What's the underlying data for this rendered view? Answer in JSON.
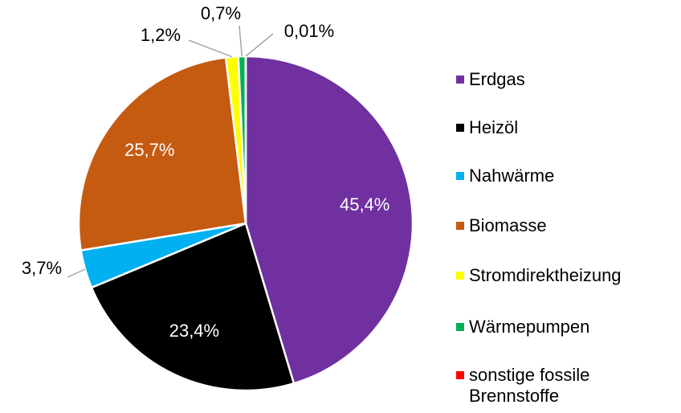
{
  "chart_data": {
    "type": "pie",
    "categories": [
      "Erdgas",
      "Heizöl",
      "Nahwärme",
      "Biomasse",
      "Stromdirektheizung",
      "Wärmepumpen",
      "sonstige fossile Brennstoffe"
    ],
    "values": [
      45.4,
      23.4,
      3.7,
      25.7,
      1.2,
      0.7,
      0.01
    ],
    "value_labels": [
      "45,4%",
      "23,4%",
      "3,7%",
      "25,7%",
      "1,2%",
      "0,7%",
      "0,01%"
    ],
    "colors": [
      "#7030a0",
      "#000000",
      "#00b0f0",
      "#c55a11",
      "#ffff00",
      "#00b050",
      "#ff0000"
    ],
    "legend": "right"
  }
}
